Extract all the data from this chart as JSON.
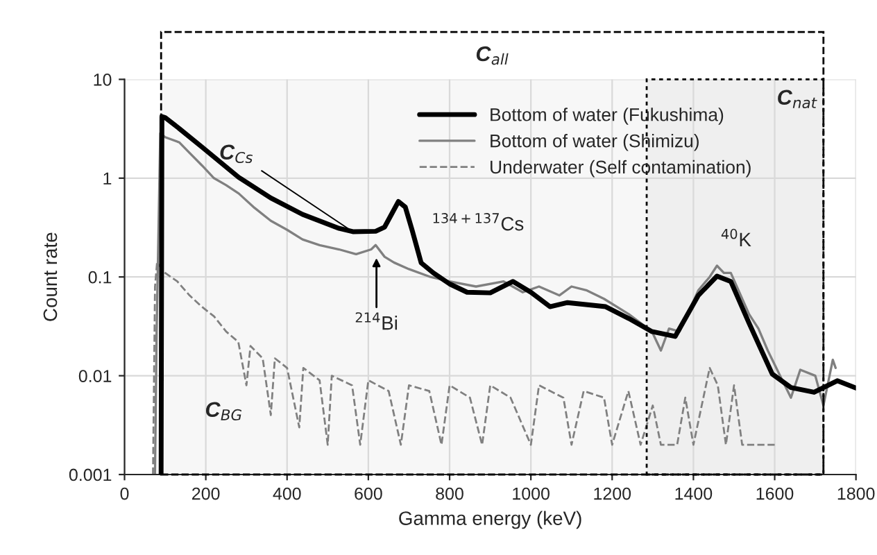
{
  "chart_data": {
    "type": "line",
    "xlabel": "Gamma energy (keV)",
    "ylabel": "Count rate",
    "log": "y",
    "xlim": [
      0,
      1800
    ],
    "xticks": [
      0,
      200,
      400,
      600,
      800,
      1000,
      1200,
      1400,
      1600,
      1800
    ],
    "ylim": [
      0.001,
      10
    ],
    "yticks": [
      0.001,
      0.01,
      0.1,
      1,
      10
    ],
    "grid": true,
    "legend": "top right",
    "series": [
      {
        "name": "Bottom of water (Fukushima)",
        "color": "#000000",
        "line_style": "solid",
        "x": [
          90,
          92,
          100,
          135,
          191,
          281,
          360,
          438,
          528,
          562,
          618,
          640,
          674,
          691,
          708,
          730,
          760,
          800,
          843,
          900,
          956,
          1000,
          1047,
          1090,
          1127,
          1184,
          1241,
          1298,
          1355,
          1412,
          1458,
          1492,
          1537,
          1594,
          1640,
          1697,
          1754,
          1800
        ],
        "values": [
          0.001,
          4.2,
          4.1,
          3.17,
          2.06,
          1.02,
          0.63,
          0.43,
          0.31,
          0.287,
          0.29,
          0.32,
          0.58,
          0.51,
          0.295,
          0.139,
          0.11,
          0.085,
          0.07,
          0.069,
          0.09,
          0.07,
          0.05,
          0.055,
          0.053,
          0.05,
          0.038,
          0.028,
          0.025,
          0.065,
          0.102,
          0.09,
          0.034,
          0.0104,
          0.0076,
          0.0068,
          0.0089,
          0.0075
        ]
      },
      {
        "name": "Bottom of water (Shimizu)",
        "color": "#808080",
        "line_style": "solid",
        "x": [
          75,
          79,
          88,
          100,
          135,
          160,
          191,
          220,
          250,
          281,
          320,
          360,
          400,
          438,
          480,
          528,
          570,
          607,
          618,
          640,
          663,
          700,
          753,
          800,
          865,
          933,
          980,
          1020,
          1070,
          1100,
          1138,
          1180,
          1241,
          1298,
          1320,
          1340,
          1366,
          1412,
          1440,
          1458,
          1475,
          1492,
          1537,
          1560,
          1583,
          1617,
          1640,
          1663,
          1700,
          1720,
          1743,
          1750
        ],
        "values": [
          0.001,
          0.028,
          2.85,
          2.6,
          2.3,
          1.8,
          1.34,
          1.0,
          0.85,
          0.7,
          0.5,
          0.37,
          0.3,
          0.24,
          0.21,
          0.19,
          0.17,
          0.19,
          0.21,
          0.16,
          0.14,
          0.12,
          0.1,
          0.09,
          0.08,
          0.09,
          0.07,
          0.08,
          0.065,
          0.08,
          0.073,
          0.06,
          0.042,
          0.028,
          0.018,
          0.03,
          0.028,
          0.073,
          0.1,
          0.13,
          0.11,
          0.11,
          0.042,
          0.03,
          0.018,
          0.0093,
          0.006,
          0.0115,
          0.01,
          0.005,
          0.0145,
          0.012
        ]
      },
      {
        "name": "Underwater (Self contamination)",
        "color": "#808080",
        "line_style": "dashed",
        "x": [
          70,
          75,
          80,
          100,
          130,
          160,
          190,
          220,
          250,
          280,
          300,
          310,
          340,
          360,
          370,
          400,
          430,
          440,
          480,
          500,
          510,
          560,
          580,
          600,
          650,
          680,
          700,
          750,
          780,
          800,
          850,
          880,
          900,
          950,
          1000,
          1020,
          1080,
          1100,
          1130,
          1180,
          1200,
          1240,
          1270,
          1300,
          1320,
          1360,
          1380,
          1400,
          1440,
          1460,
          1480,
          1500,
          1520,
          1600
        ],
        "values": [
          0.001,
          0.08,
          0.14,
          0.11,
          0.09,
          0.065,
          0.05,
          0.04,
          0.028,
          0.022,
          0.008,
          0.02,
          0.015,
          0.004,
          0.015,
          0.012,
          0.003,
          0.012,
          0.009,
          0.002,
          0.01,
          0.008,
          0.002,
          0.009,
          0.007,
          0.002,
          0.008,
          0.007,
          0.002,
          0.008,
          0.006,
          0.002,
          0.008,
          0.006,
          0.002,
          0.008,
          0.006,
          0.002,
          0.007,
          0.006,
          0.002,
          0.007,
          0.002,
          0.005,
          0.002,
          0.002,
          0.006,
          0.002,
          0.012,
          0.008,
          0.002,
          0.008,
          0.002,
          0.002
        ]
      }
    ],
    "bands": [
      {
        "axis": "x",
        "from": 90,
        "to": 1720,
        "label": "C$_{all}$",
        "color": "#000000"
      },
      {
        "axis": "x",
        "from": 1285,
        "to": 1720,
        "label": "C$_{nat}$",
        "color": "#000000"
      }
    ],
    "annotations": [
      {
        "text": "C$_{Cs}$",
        "x": 560,
        "y": 0.29
      },
      "$^{134+137}$Cs",
      {
        "text": "$^{214}$Bi",
        "x": 620,
        "y": 0.17
      },
      "$^{40}$K",
      "C$_{BG}$"
    ]
  }
}
